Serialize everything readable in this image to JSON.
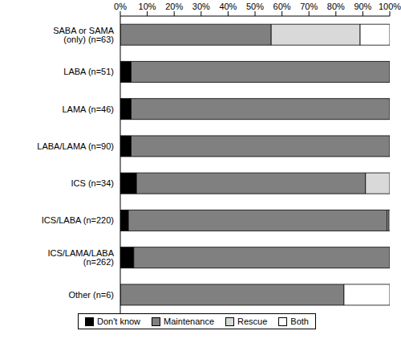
{
  "chart_data": {
    "type": "bar",
    "orientation": "horizontal",
    "stacked": true,
    "legend": "bottom",
    "categories": [
      "SABA or SAMA (only) (n=63)",
      "LABA (n=51)",
      "LAMA (n=46)",
      "LABA/LAMA (n=90)",
      "ICS (n=34)",
      "ICS/LABA (n=220)",
      "ICS/LAMA/LABA (n=262)",
      "Other (n=6)"
    ],
    "series": [
      {
        "name": "Don't know",
        "color": "#000000",
        "values": [
          0,
          4,
          4,
          4,
          6,
          3,
          5,
          0
        ]
      },
      {
        "name": "Maintenance",
        "color": "#808080",
        "values": [
          56,
          96,
          96,
          96,
          85,
          96,
          95,
          83
        ]
      },
      {
        "name": "Rescue",
        "color": "#d9d9d9",
        "values": [
          33,
          0,
          0,
          0,
          9,
          0.5,
          0,
          0
        ]
      },
      {
        "name": "Both",
        "color": "#ffffff",
        "values": [
          11,
          0,
          0,
          0,
          0,
          0.5,
          0,
          17
        ]
      }
    ],
    "xlim": [
      0,
      100
    ],
    "xticks": [
      {
        "value": 0,
        "label": "0%"
      },
      {
        "value": 10,
        "label": "10%"
      },
      {
        "value": 20,
        "label": "20%"
      },
      {
        "value": 30,
        "label": "30%"
      },
      {
        "value": 40,
        "label": "40%"
      },
      {
        "value": 50,
        "label": "50%"
      },
      {
        "value": 60,
        "label": "60%"
      },
      {
        "value": 70,
        "label": "70%"
      },
      {
        "value": 80,
        "label": "80%"
      },
      {
        "value": 90,
        "label": "90%"
      },
      {
        "value": 100,
        "label": "100%"
      }
    ]
  }
}
